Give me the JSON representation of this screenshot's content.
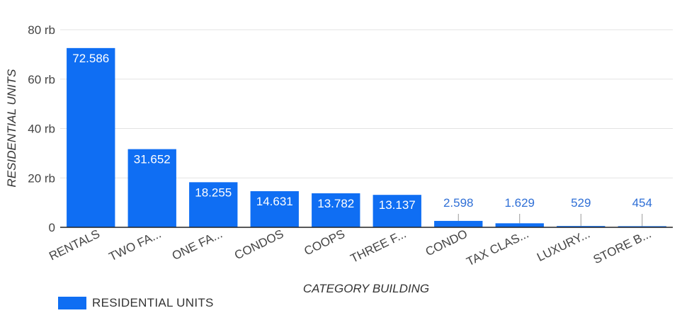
{
  "chart_data": {
    "type": "bar",
    "xlabel": "CATEGORY BUILDING",
    "ylabel": "RESIDENTIAL UNITS",
    "ylim": [
      0,
      80000
    ],
    "yticks": [
      0,
      20000,
      40000,
      60000,
      80000
    ],
    "ytick_labels": [
      "0",
      "20 rb",
      "40 rb",
      "60 rb",
      "80 rb"
    ],
    "categories": [
      "RENTALS",
      "TWO FA...",
      "ONE FA...",
      "CONDOS",
      "COOPS",
      "THREE F...",
      "CONDO",
      "TAX CLAS...",
      "LUXURY...",
      "STORE B..."
    ],
    "series": [
      {
        "name": "RESIDENTIAL UNITS",
        "values": [
          72586,
          31652,
          18255,
          14631,
          13782,
          13137,
          2598,
          1629,
          529,
          454
        ],
        "labels": [
          "72.586",
          "31.652",
          "18.255",
          "14.631",
          "13.782",
          "13.137",
          "2.598",
          "1.629",
          "529",
          "454"
        ]
      }
    ],
    "grid": true,
    "legend_position": "bottom-left",
    "colors": {
      "bar": "#0f6ef3",
      "label_inside": "#ffffff",
      "label_outside": "#2f6fd6",
      "grid": "#e3e3e3",
      "axis": "#222222"
    }
  }
}
